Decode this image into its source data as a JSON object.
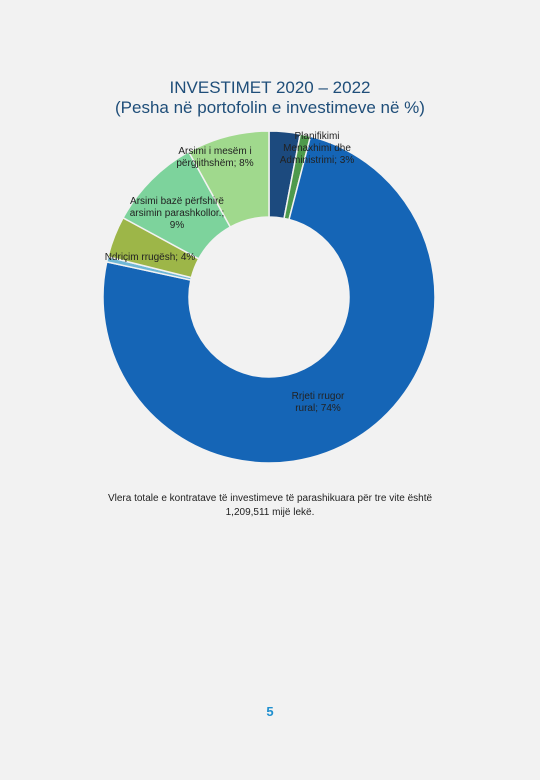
{
  "chart_data": {
    "type": "donut",
    "title": "INVESTIMET 2020 – 2022",
    "subtitle": "(Pesha në portofolin e investimeve në %)",
    "values": [
      3,
      1,
      74,
      0.5,
      4,
      9,
      8
    ],
    "value_labels": [
      "Menaxhimi dhe Administrimi; 3%",
      "Planifikimi",
      "Rrjeti rrugor rural; 74%",
      null,
      "Ndriçim rrugësh; 4%",
      "Arsimi bazë përfshirë arsimin parashkollor.; 9%",
      "Arsimi i mesëm i përgjithshëm; 8%"
    ],
    "colors": [
      "#1c4a7e",
      "#4e9a4c",
      "#1565b6",
      "#6fb8d6",
      "#9db648",
      "#7dd39c",
      "#a0d98d"
    ],
    "note": "Vlera totale e kontratave të investimeve të parashikuara për tre vite është 1,209,511 mijë lekë."
  },
  "page_number": "5"
}
